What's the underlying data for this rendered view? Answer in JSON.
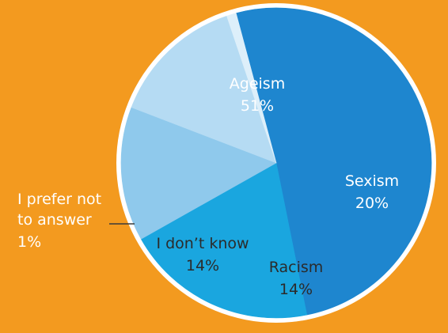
{
  "chart_data": {
    "type": "pie",
    "title": "",
    "series": [
      {
        "categories": [
          "Ageism",
          "Sexism",
          "Racism",
          "I don’t know",
          "I prefer not to answer"
        ],
        "values": [
          51,
          20,
          14,
          14,
          1
        ]
      }
    ],
    "labels": [
      {
        "name": "Ageism",
        "value": "51%"
      },
      {
        "name": "Sexism",
        "value": "20%"
      },
      {
        "name": "Racism",
        "value": "14%"
      },
      {
        "name": "I don’t know",
        "value": "14%"
      },
      {
        "name_lines": [
          "I prefer not",
          "to answer"
        ],
        "value": "1%"
      }
    ],
    "colors": {
      "background": "#F39A1F",
      "ring": "#FFFFFF",
      "slices": [
        "#1E86CF",
        "#1AA6DF",
        "#8FC9EC",
        "#B5DBF3",
        "#DDEFFA"
      ],
      "leader": "#3a3a3a"
    },
    "start_angle_deg": 255,
    "legend": "none"
  }
}
